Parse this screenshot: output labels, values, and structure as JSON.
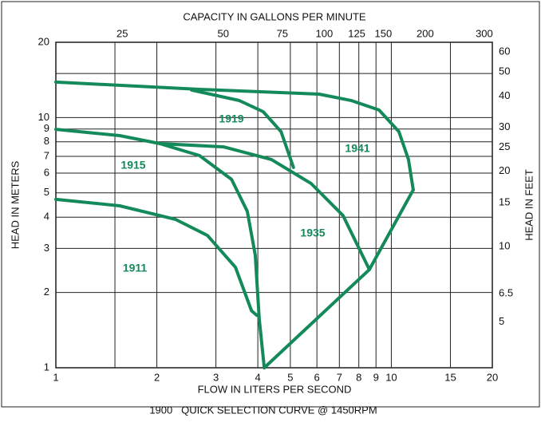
{
  "chart_data": {
    "type": "line",
    "title": "CAPACITY IN GALLONS PER MINUTE",
    "xlabel": "FLOW IN LITERS PER SECOND",
    "ylabel": "HEAD IN METERS",
    "y2label": "HEAD IN FEET",
    "caption": "1900   QUICK SELECTION CURVE @ 1450RPM",
    "xscale": "log",
    "yscale": "log",
    "xlim": [
      1,
      20
    ],
    "xticks": [
      1,
      2,
      3,
      4,
      5,
      6,
      7,
      8,
      9,
      10,
      15,
      20
    ],
    "xgrid": [
      1.5
    ],
    "ylim": [
      1,
      20
    ],
    "yticks": [
      1,
      2,
      3,
      4,
      5,
      6,
      7,
      8,
      9,
      10,
      20
    ],
    "ygrid": [
      15
    ],
    "x2lim": [
      15.85,
      317
    ],
    "x2ticks": [
      25,
      50,
      75,
      100,
      125,
      150,
      200,
      300
    ],
    "y2lim": [
      3.28,
      65.6
    ],
    "y2ticks": [
      5,
      6.5,
      10,
      15,
      20,
      25,
      30,
      40,
      50,
      60
    ],
    "grid": true,
    "series": [
      {
        "name": "1941",
        "color": "#148a5a",
        "x": [
          1,
          2.68,
          6.09,
          7.58,
          9.19,
          10.53,
          11.25,
          11.62
        ],
        "values": [
          13.86,
          12.97,
          12.41,
          11.71,
          10.72,
          8.79,
          6.8,
          5.14
        ]
      },
      {
        "name": "1919",
        "color": "#148a5a",
        "x": [
          2.54,
          3.52,
          4.15,
          4.69,
          5.11
        ],
        "values": [
          12.88,
          11.7,
          10.56,
          8.79,
          6.32
        ]
      },
      {
        "name": "1915",
        "color": "#148a5a",
        "x": [
          1,
          1.55,
          2.04,
          2.68,
          3.34,
          3.72,
          3.93,
          4.04,
          4.18
        ],
        "values": [
          8.98,
          8.47,
          7.87,
          7.05,
          5.66,
          4.22,
          2.82,
          1.565,
          1
        ]
      },
      {
        "name": "1935",
        "color": "#148a5a",
        "x": [
          2.04,
          3.16,
          4.39,
          5.77,
          7.18,
          8.6
        ],
        "values": [
          7.87,
          7.64,
          6.8,
          5.45,
          4.06,
          2.47
        ]
      },
      {
        "name": "1911",
        "color": "#148a5a",
        "x": [
          1,
          1.55,
          2.27,
          2.83,
          3.43,
          3.83,
          3.97
        ],
        "values": [
          4.71,
          4.44,
          3.92,
          3.38,
          2.52,
          1.69,
          1.62
        ]
      },
      {
        "color": "#148a5a",
        "x": [
          11.62,
          8.6,
          4.18
        ],
        "values": [
          5.14,
          2.47,
          1
        ]
      }
    ]
  }
}
